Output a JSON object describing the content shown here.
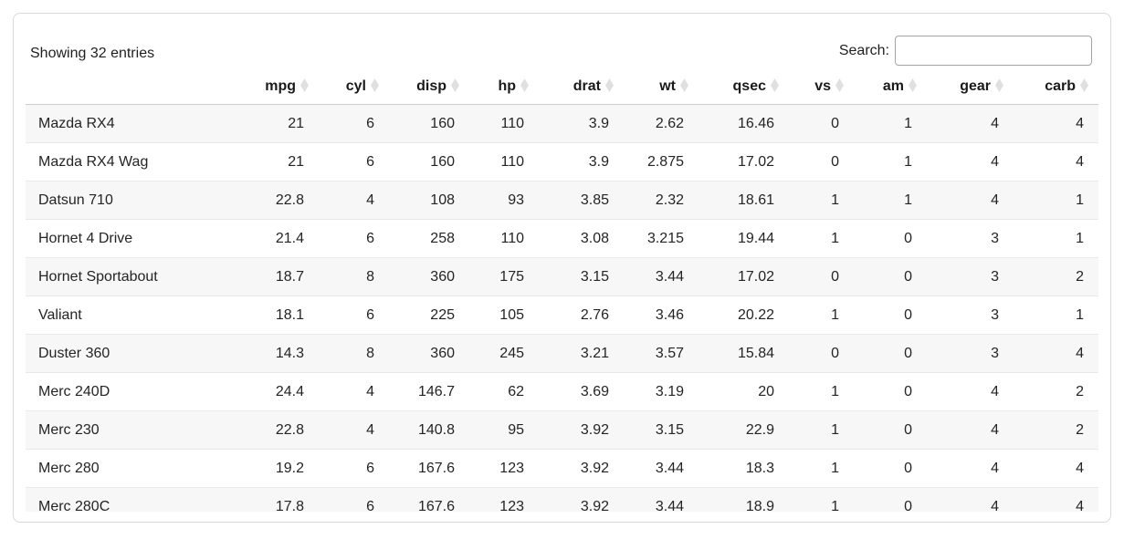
{
  "toolbar": {
    "showing_text": "Showing 32 entries",
    "search_label": "Search:",
    "search_value": ""
  },
  "table": {
    "row_name_header": "",
    "columns": [
      "mpg",
      "cyl",
      "disp",
      "hp",
      "drat",
      "wt",
      "qsec",
      "vs",
      "am",
      "gear",
      "carb"
    ],
    "sort_icon": "diamond-unsorted-icon",
    "rows": [
      {
        "name": "Mazda RX4",
        "values": [
          "21",
          "6",
          "160",
          "110",
          "3.9",
          "2.62",
          "16.46",
          "0",
          "1",
          "4",
          "4"
        ]
      },
      {
        "name": "Mazda RX4 Wag",
        "values": [
          "21",
          "6",
          "160",
          "110",
          "3.9",
          "2.875",
          "17.02",
          "0",
          "1",
          "4",
          "4"
        ]
      },
      {
        "name": "Datsun 710",
        "values": [
          "22.8",
          "4",
          "108",
          "93",
          "3.85",
          "2.32",
          "18.61",
          "1",
          "1",
          "4",
          "1"
        ]
      },
      {
        "name": "Hornet 4 Drive",
        "values": [
          "21.4",
          "6",
          "258",
          "110",
          "3.08",
          "3.215",
          "19.44",
          "1",
          "0",
          "3",
          "1"
        ]
      },
      {
        "name": "Hornet Sportabout",
        "values": [
          "18.7",
          "8",
          "360",
          "175",
          "3.15",
          "3.44",
          "17.02",
          "0",
          "0",
          "3",
          "2"
        ]
      },
      {
        "name": "Valiant",
        "values": [
          "18.1",
          "6",
          "225",
          "105",
          "2.76",
          "3.46",
          "20.22",
          "1",
          "0",
          "3",
          "1"
        ]
      },
      {
        "name": "Duster 360",
        "values": [
          "14.3",
          "8",
          "360",
          "245",
          "3.21",
          "3.57",
          "15.84",
          "0",
          "0",
          "3",
          "4"
        ]
      },
      {
        "name": "Merc 240D",
        "values": [
          "24.4",
          "4",
          "146.7",
          "62",
          "3.69",
          "3.19",
          "20",
          "1",
          "0",
          "4",
          "2"
        ]
      },
      {
        "name": "Merc 230",
        "values": [
          "22.8",
          "4",
          "140.8",
          "95",
          "3.92",
          "3.15",
          "22.9",
          "1",
          "0",
          "4",
          "2"
        ]
      },
      {
        "name": "Merc 280",
        "values": [
          "19.2",
          "6",
          "167.6",
          "123",
          "3.92",
          "3.44",
          "18.3",
          "1",
          "0",
          "4",
          "4"
        ]
      },
      {
        "name": "Merc 280C",
        "values": [
          "17.8",
          "6",
          "167.6",
          "123",
          "3.92",
          "3.44",
          "18.9",
          "1",
          "0",
          "4",
          "4"
        ]
      }
    ]
  },
  "colors": {
    "card_border": "#d9d9d9",
    "header_border": "#cccccc",
    "row_border": "#e9e9e9",
    "row_stripe": "#f7f7f7",
    "sort_icon": "#e0e0e0",
    "text": "#212121"
  }
}
